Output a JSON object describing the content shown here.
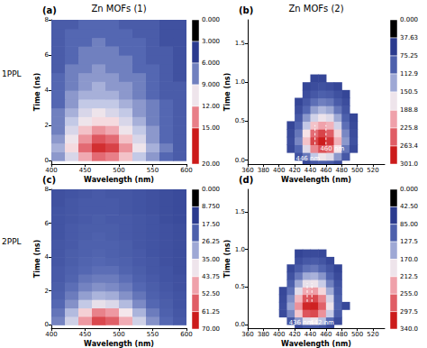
{
  "column_titles": [
    "Zn MOFs (1)",
    "Zn MOFs (2)"
  ],
  "row_labels": [
    "1PPL",
    "2PPL"
  ],
  "chart_data": [
    {
      "type": "heatmap",
      "title": "(a)",
      "x_label": "Wavelength (nm)",
      "y_label": "Time (ns)",
      "grid": false,
      "xlim": [
        400,
        600
      ],
      "xticks": [
        400,
        450,
        500,
        550,
        600
      ],
      "ylim": [
        -0.2,
        8
      ],
      "yticks": [
        0,
        2,
        4,
        6,
        8
      ],
      "x": [
        410,
        430,
        450,
        470,
        490,
        510,
        530,
        550,
        570,
        590
      ],
      "y": [
        0.25,
        0.75,
        1.25,
        1.75,
        2.25,
        2.75,
        3.25,
        3.75,
        4.25,
        4.75,
        5.25,
        5.75,
        6.25,
        6.75,
        7.25,
        7.75
      ],
      "values": [
        [
          6,
          9,
          13,
          16,
          15,
          12,
          8,
          6,
          4,
          3
        ],
        [
          7,
          11,
          16,
          19,
          18,
          14,
          10,
          7,
          5,
          3
        ],
        [
          6,
          10,
          14,
          17,
          16,
          12,
          9,
          6,
          4,
          3
        ],
        [
          5,
          9,
          12,
          14,
          13,
          10,
          8,
          6,
          4,
          3
        ],
        [
          5,
          8,
          10,
          11,
          11,
          9,
          7,
          5,
          4,
          3
        ],
        [
          5,
          7,
          9,
          10,
          9,
          8,
          6,
          5,
          4,
          3
        ],
        [
          4,
          6,
          8,
          8,
          8,
          7,
          6,
          5,
          4,
          3
        ],
        [
          4,
          6,
          7,
          7,
          7,
          6,
          5,
          4,
          3,
          3
        ],
        [
          4,
          5,
          6,
          7,
          6,
          6,
          5,
          4,
          3,
          3
        ],
        [
          4,
          5,
          6,
          6,
          6,
          5,
          5,
          4,
          3,
          2
        ],
        [
          3,
          5,
          5,
          6,
          5,
          5,
          4,
          4,
          3,
          2
        ],
        [
          3,
          4,
          5,
          5,
          5,
          5,
          4,
          3,
          3,
          2
        ],
        [
          3,
          4,
          5,
          5,
          5,
          4,
          4,
          3,
          3,
          2
        ],
        [
          3,
          4,
          4,
          5,
          4,
          4,
          4,
          3,
          2,
          2
        ],
        [
          3,
          4,
          4,
          4,
          4,
          4,
          3,
          3,
          2,
          2
        ],
        [
          3,
          3,
          4,
          4,
          4,
          3,
          3,
          3,
          2,
          2
        ]
      ],
      "colorbar": {
        "lim": [
          0,
          20
        ],
        "ticks": [
          {
            "value": 0,
            "label": "0.000"
          },
          {
            "value": 3,
            "label": "3.000"
          },
          {
            "value": 6,
            "label": "6.000"
          },
          {
            "value": 9,
            "label": "9.000"
          },
          {
            "value": 12,
            "label": "12.00"
          },
          {
            "value": 15,
            "label": "15.00"
          },
          {
            "value": 20,
            "label": "20.00"
          }
        ]
      },
      "lines": [],
      "annotations": []
    },
    {
      "type": "heatmap",
      "title": "(b)",
      "x_label": "Wavelength (nm)",
      "y_label": "Time (ns)",
      "grid": false,
      "xlim": [
        360,
        535
      ],
      "xticks": [
        360,
        380,
        400,
        420,
        440,
        460,
        480,
        500,
        520
      ],
      "ylim": [
        -0.05,
        1.8
      ],
      "yticks": [
        {
          "value": 0,
          "label": "0.0"
        },
        0.5,
        {
          "value": 1,
          "label": "1.0"
        },
        1.5
      ],
      "x": [
        405,
        415,
        425,
        435,
        445,
        455,
        465,
        475,
        485,
        495,
        505,
        515
      ],
      "y": [
        -0.05,
        0.05,
        0.15,
        0.25,
        0.35,
        0.45,
        0.55,
        0.65,
        0.75,
        0.85,
        0.95,
        1.05
      ],
      "values": [
        [
          null,
          null,
          null,
          20,
          40,
          50,
          45,
          25,
          null,
          null,
          null,
          null
        ],
        [
          null,
          null,
          30,
          70,
          120,
          150,
          140,
          90,
          40,
          null,
          null,
          null
        ],
        [
          null,
          20,
          60,
          140,
          220,
          260,
          240,
          160,
          70,
          20,
          null,
          null
        ],
        [
          null,
          25,
          80,
          180,
          270,
          300,
          280,
          190,
          90,
          30,
          null,
          null
        ],
        [
          null,
          20,
          70,
          160,
          240,
          270,
          250,
          170,
          80,
          25,
          null,
          null
        ],
        [
          null,
          15,
          55,
          120,
          180,
          200,
          190,
          130,
          65,
          20,
          null,
          null
        ],
        [
          null,
          null,
          40,
          90,
          130,
          150,
          140,
          100,
          50,
          15,
          null,
          null
        ],
        [
          null,
          null,
          25,
          60,
          95,
          110,
          100,
          70,
          35,
          null,
          null,
          null
        ],
        [
          null,
          null,
          15,
          40,
          65,
          75,
          70,
          45,
          25,
          null,
          null,
          null
        ],
        [
          null,
          null,
          null,
          25,
          40,
          50,
          45,
          30,
          15,
          null,
          null,
          null
        ],
        [
          null,
          null,
          null,
          15,
          25,
          30,
          25,
          15,
          null,
          null,
          null,
          null
        ],
        [
          null,
          null,
          null,
          null,
          15,
          15,
          null,
          null,
          null,
          null,
          null,
          null
        ]
      ],
      "colorbar": {
        "lim": [
          0,
          301
        ],
        "ticks": [
          {
            "value": 0,
            "label": "0.000"
          },
          37.63,
          75.25,
          112.9,
          150.5,
          188.8,
          225.8,
          263.4,
          {
            "value": 301,
            "label": "301.0"
          }
        ]
      },
      "lines": [
        446,
        460
      ],
      "line_span": [
        0.2,
        0.45
      ],
      "annotations": [
        {
          "text": "446 nm",
          "x": 437,
          "y": 0.02
        },
        {
          "text": "460 nm",
          "x": 468,
          "y": 0.15
        }
      ]
    },
    {
      "type": "heatmap",
      "title": "(c)",
      "x_label": "Wavelength (nm)",
      "y_label": "Time (ns)",
      "grid": false,
      "xlim": [
        400,
        600
      ],
      "xticks": [
        400,
        450,
        500,
        550,
        600
      ],
      "ylim": [
        -0.2,
        8
      ],
      "yticks": [
        0,
        2,
        4,
        6,
        8
      ],
      "x": [
        410,
        430,
        450,
        470,
        490,
        510,
        530,
        550,
        570,
        590
      ],
      "y": [
        0.25,
        0.75,
        1.25,
        1.75,
        2.25,
        2.75,
        3.25,
        3.75,
        4.25,
        4.75,
        5.25,
        5.75,
        6.25,
        6.75,
        7.25,
        7.75
      ],
      "values": [
        [
          18,
          30,
          48,
          62,
          58,
          45,
          30,
          20,
          14,
          10
        ],
        [
          16,
          26,
          40,
          52,
          48,
          36,
          25,
          17,
          12,
          9
        ],
        [
          14,
          20,
          28,
          34,
          32,
          26,
          19,
          14,
          11,
          8
        ],
        [
          12,
          17,
          22,
          25,
          24,
          20,
          16,
          12,
          10,
          8
        ],
        [
          11,
          15,
          18,
          20,
          19,
          17,
          14,
          11,
          9,
          7
        ],
        [
          10,
          13,
          16,
          17,
          17,
          15,
          12,
          10,
          8,
          7
        ],
        [
          10,
          12,
          14,
          15,
          15,
          13,
          11,
          9,
          8,
          6
        ],
        [
          9,
          11,
          13,
          14,
          13,
          12,
          10,
          9,
          7,
          6
        ],
        [
          9,
          11,
          12,
          13,
          12,
          11,
          10,
          8,
          7,
          6
        ],
        [
          9,
          10,
          12,
          12,
          12,
          11,
          9,
          8,
          7,
          6
        ],
        [
          8,
          10,
          11,
          12,
          11,
          10,
          9,
          8,
          7,
          6
        ],
        [
          8,
          10,
          11,
          11,
          11,
          10,
          9,
          8,
          7,
          6
        ],
        [
          8,
          9,
          10,
          11,
          10,
          10,
          9,
          8,
          6,
          5
        ],
        [
          8,
          9,
          10,
          10,
          10,
          9,
          8,
          7,
          6,
          5
        ],
        [
          7,
          9,
          10,
          10,
          10,
          9,
          8,
          7,
          6,
          5
        ],
        [
          7,
          8,
          9,
          10,
          9,
          9,
          8,
          7,
          6,
          5
        ]
      ],
      "colorbar": {
        "lim": [
          0,
          70
        ],
        "ticks": [
          {
            "value": 0,
            "label": "0.000"
          },
          {
            "value": 8.75,
            "label": "8.750"
          },
          {
            "value": 17.5,
            "label": "17.50"
          },
          26.25,
          {
            "value": 35,
            "label": "35.00"
          },
          43.75,
          {
            "value": 52.5,
            "label": "52.50"
          },
          61.25,
          {
            "value": 70,
            "label": "70.00"
          }
        ]
      },
      "lines": [],
      "annotations": []
    },
    {
      "type": "heatmap",
      "title": "(d)",
      "x_label": "Wavelength (nm)",
      "y_label": "Time (ns)",
      "grid": false,
      "xlim": [
        360,
        535
      ],
      "xticks": [
        360,
        380,
        400,
        420,
        440,
        460,
        480,
        500,
        520
      ],
      "ylim": [
        -0.05,
        1.8
      ],
      "yticks": [
        {
          "value": 0,
          "label": "0.0"
        },
        0.5,
        {
          "value": 1,
          "label": "1.0"
        },
        1.5
      ],
      "x": [
        395,
        405,
        415,
        425,
        435,
        445,
        455,
        465,
        475,
        485,
        495,
        505
      ],
      "y": [
        -0.05,
        0.05,
        0.15,
        0.25,
        0.35,
        0.45,
        0.55,
        0.65,
        0.75,
        0.85,
        0.95
      ],
      "values": [
        [
          null,
          null,
          null,
          25,
          45,
          50,
          40,
          20,
          null,
          null,
          null,
          null
        ],
        [
          null,
          null,
          40,
          100,
          160,
          170,
          130,
          70,
          25,
          null,
          null,
          null
        ],
        [
          null,
          25,
          90,
          200,
          290,
          300,
          240,
          140,
          50,
          null,
          null,
          null
        ],
        [
          null,
          30,
          110,
          240,
          330,
          335,
          280,
          170,
          60,
          20,
          null,
          null
        ],
        [
          null,
          25,
          95,
          210,
          290,
          300,
          250,
          150,
          55,
          null,
          null,
          null
        ],
        [
          null,
          20,
          75,
          160,
          220,
          230,
          190,
          115,
          45,
          null,
          null,
          null
        ],
        [
          null,
          null,
          55,
          115,
          165,
          170,
          140,
          85,
          35,
          null,
          null,
          null
        ],
        [
          null,
          null,
          35,
          80,
          115,
          120,
          100,
          60,
          25,
          null,
          null,
          null
        ],
        [
          null,
          null,
          20,
          50,
          75,
          80,
          65,
          40,
          15,
          null,
          null,
          null
        ],
        [
          null,
          null,
          null,
          30,
          45,
          50,
          40,
          20,
          null,
          null,
          null,
          null
        ],
        [
          null,
          null,
          null,
          15,
          25,
          25,
          20,
          null,
          null,
          null,
          null,
          null
        ]
      ],
      "colorbar": {
        "lim": [
          0,
          340
        ],
        "ticks": [
          {
            "value": 0,
            "label": "0.000"
          },
          {
            "value": 42.5,
            "label": "42.50"
          },
          {
            "value": 85,
            "label": "85.00"
          },
          127.5,
          {
            "value": 170,
            "label": "170.0"
          },
          212.5,
          {
            "value": 255,
            "label": "255.0"
          },
          297.5,
          {
            "value": 340,
            "label": "340.0"
          }
        ]
      },
      "lines": [
        436,
        442
      ],
      "line_span": [
        0.3,
        0.55
      ],
      "annotations": [
        {
          "text": "436 nm",
          "x": 428,
          "y": 0.02
        },
        {
          "text": "442 nm",
          "x": 455,
          "y": 0.02
        }
      ]
    }
  ]
}
